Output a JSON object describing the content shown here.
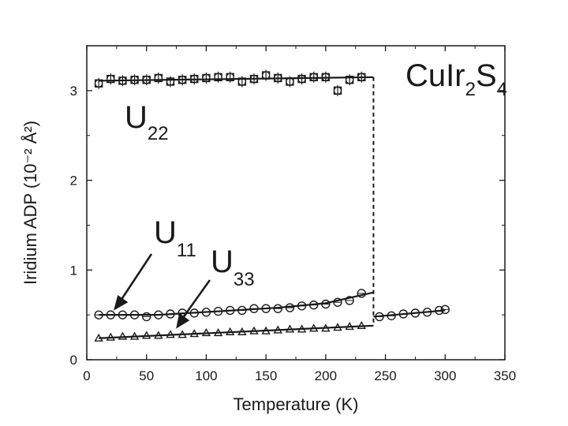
{
  "chart_data": {
    "type": "scatter",
    "compound": {
      "base": "CuIr",
      "sub1": "2",
      "mid": "S",
      "sub2": "4"
    },
    "xlabel": "Temperature (K)",
    "ylabel": "Iridium ADP (10⁻² Å²)",
    "xlim": [
      0,
      350
    ],
    "ylim": [
      0,
      3.5
    ],
    "xticks": [
      0,
      50,
      100,
      150,
      200,
      250,
      300,
      350
    ],
    "yticks": [
      0,
      1,
      2,
      3
    ],
    "grid": false,
    "legend": "none",
    "series": [
      {
        "name": "U22",
        "marker": "square-circle",
        "x": [
          10,
          20,
          30,
          40,
          50,
          60,
          70,
          80,
          90,
          100,
          110,
          120,
          130,
          140,
          150,
          160,
          170,
          180,
          190,
          200,
          210,
          220,
          230
        ],
        "y": [
          3.08,
          3.13,
          3.11,
          3.12,
          3.12,
          3.14,
          3.1,
          3.12,
          3.13,
          3.14,
          3.15,
          3.15,
          3.1,
          3.13,
          3.17,
          3.14,
          3.1,
          3.13,
          3.15,
          3.15,
          3.0,
          3.12,
          3.15
        ]
      },
      {
        "name": "U11",
        "marker": "circle",
        "x": [
          10,
          20,
          30,
          40,
          50,
          60,
          70,
          80,
          90,
          100,
          110,
          120,
          130,
          140,
          150,
          160,
          170,
          180,
          190,
          200,
          210,
          220,
          230,
          245,
          255,
          265,
          275,
          285,
          295,
          300
        ],
        "y": [
          0.5,
          0.5,
          0.5,
          0.5,
          0.48,
          0.5,
          0.51,
          0.52,
          0.52,
          0.53,
          0.54,
          0.55,
          0.55,
          0.57,
          0.57,
          0.57,
          0.58,
          0.6,
          0.61,
          0.62,
          0.64,
          0.66,
          0.74,
          0.48,
          0.49,
          0.51,
          0.52,
          0.53,
          0.55,
          0.56
        ]
      },
      {
        "name": "U33",
        "marker": "triangle",
        "x": [
          10,
          20,
          30,
          40,
          50,
          60,
          70,
          80,
          90,
          100,
          110,
          120,
          130,
          140,
          150,
          160,
          170,
          180,
          190,
          200,
          210,
          220,
          230
        ],
        "y": [
          0.24,
          0.25,
          0.26,
          0.26,
          0.27,
          0.27,
          0.28,
          0.28,
          0.29,
          0.3,
          0.3,
          0.31,
          0.31,
          0.32,
          0.32,
          0.33,
          0.34,
          0.34,
          0.35,
          0.35,
          0.36,
          0.37,
          0.38
        ]
      }
    ],
    "fit_lines": [
      {
        "name": "U22",
        "x": [
          10,
          240
        ],
        "y": [
          3.11,
          3.15
        ]
      },
      {
        "name": "U11-low",
        "x": [
          10,
          60,
          110,
          160,
          200,
          240
        ],
        "y": [
          0.5,
          0.5,
          0.54,
          0.58,
          0.63,
          0.75
        ]
      },
      {
        "name": "U33",
        "x": [
          10,
          240
        ],
        "y": [
          0.24,
          0.38
        ]
      },
      {
        "name": "U11-high",
        "x": [
          240,
          300
        ],
        "y": [
          0.48,
          0.55
        ]
      }
    ],
    "transition_x": 240,
    "annotations": [
      {
        "label": "U",
        "sub": "22"
      },
      {
        "label": "U",
        "sub": "11"
      },
      {
        "label": "U",
        "sub": "33"
      }
    ]
  }
}
